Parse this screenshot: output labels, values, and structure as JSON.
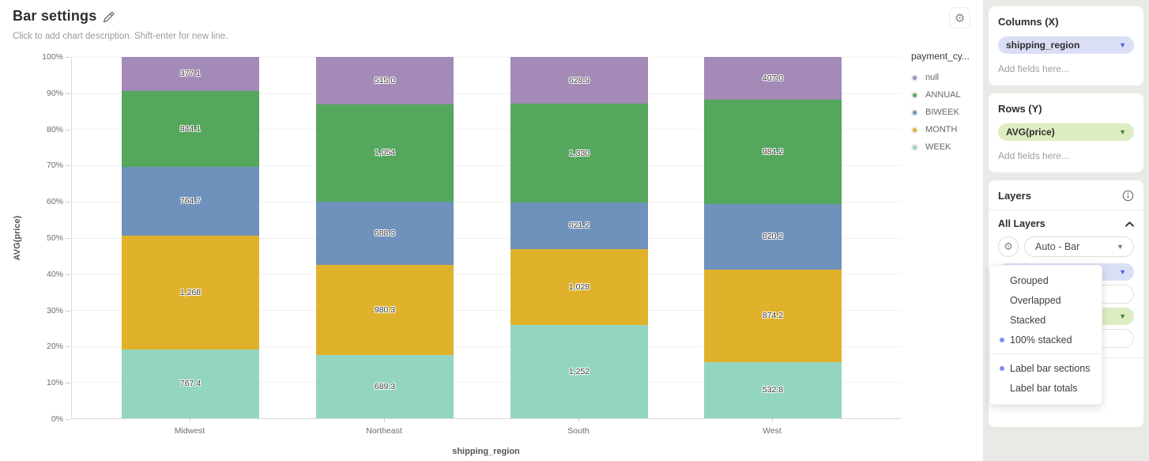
{
  "header": {
    "title": "Bar settings",
    "subtitle": "Click to add chart description. Shift-enter for new line."
  },
  "chart_data": {
    "type": "bar",
    "stacking": "100%",
    "title": "Bar settings",
    "xlabel": "shipping_region",
    "ylabel": "AVG(price)",
    "legend_title": "payment_cy...",
    "legend_position": "right",
    "grid": true,
    "ylim": [
      "0%",
      "100%"
    ],
    "y_ticks": [
      "100%",
      "90%",
      "80%",
      "70%",
      "60%",
      "50%",
      "40%",
      "30%",
      "20%",
      "10%",
      "0%"
    ],
    "categories": [
      "Midwest",
      "Northeast",
      "South",
      "West"
    ],
    "series": [
      {
        "name": "null",
        "color": "#a48ab7",
        "values": [
          377.1,
          515.0,
          628.9,
          407.0
        ],
        "labels": [
          "377.1",
          "515.0",
          "628.9",
          "407.0"
        ]
      },
      {
        "name": "ANNUAL",
        "color": "#54a75c",
        "values": [
          844.1,
          1054,
          1330,
          984.2
        ],
        "labels": [
          "844.1",
          "1,054",
          "1,330",
          "984.2"
        ]
      },
      {
        "name": "BIWEEK",
        "color": "#6e92bb",
        "values": [
          764.7,
          688.3,
          621.2,
          620.2
        ],
        "labels": [
          "764.7",
          "688.3",
          "621.2",
          "620.2"
        ]
      },
      {
        "name": "MONTH",
        "color": "#e0b22c",
        "values": [
          1268,
          980.3,
          1028,
          874.2
        ],
        "labels": [
          "1,268",
          "980.3",
          "1,028",
          "874.2"
        ]
      },
      {
        "name": "WEEK",
        "color": "#94d5c2",
        "values": [
          767.4,
          689.3,
          1252,
          532.8
        ],
        "labels": [
          "767.4",
          "689.3",
          "1,252",
          "532.8"
        ]
      }
    ]
  },
  "sidebar": {
    "columns": {
      "title": "Columns (X)",
      "pill": "shipping_region",
      "placeholder": "Add fields here..."
    },
    "rows": {
      "title": "Rows (Y)",
      "pill": "AVG(price)",
      "placeholder": "Add fields here..."
    },
    "layers": {
      "title": "Layers",
      "all_layers": "All Layers",
      "type_selector": "Auto - Bar",
      "placeholder": "Add fields here...",
      "menu": {
        "items": [
          {
            "label": "Grouped",
            "selected": false
          },
          {
            "label": "Overlapped",
            "selected": false
          },
          {
            "label": "Stacked",
            "selected": false
          },
          {
            "label": "100% stacked",
            "selected": true
          }
        ],
        "toggles": [
          {
            "label": "Label bar sections",
            "selected": true
          },
          {
            "label": "Label bar totals",
            "selected": false
          }
        ]
      }
    }
  },
  "colors": {
    "accent_blue_pill": "#dadff6",
    "accent_blue_chevron": "#4c5fd6",
    "accent_green_pill": "#ddedc1",
    "accent_green_chevron": "#3c7d33",
    "menu_selected_dot": "#7c8df0",
    "sidebar_bg": "#e8eae5",
    "gridline": "#f1f1f1",
    "axis_line": "#d9d9d9"
  }
}
